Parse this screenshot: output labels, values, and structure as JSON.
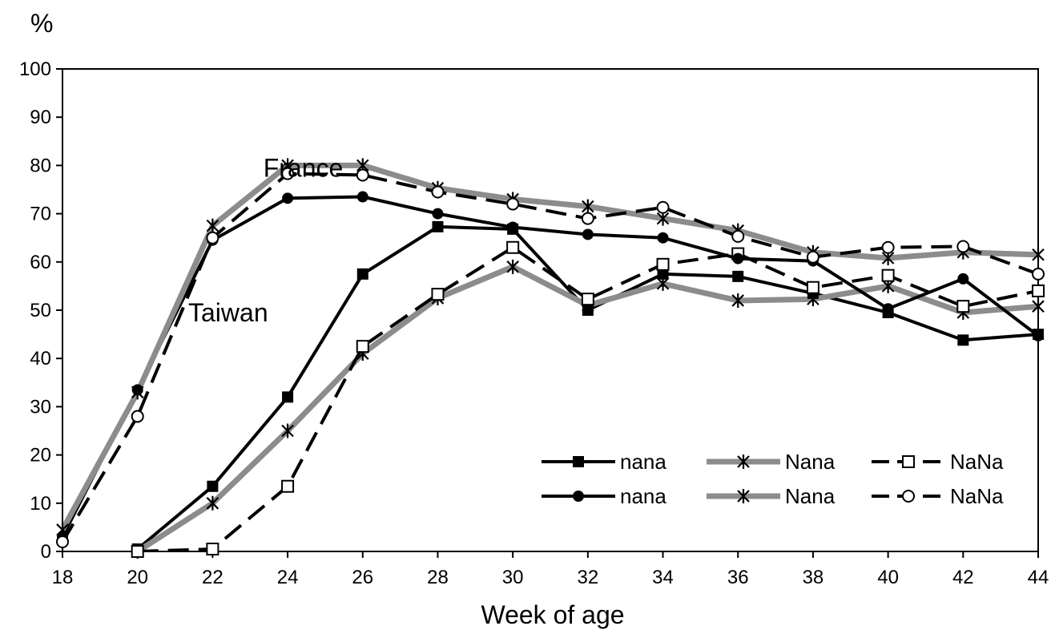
{
  "chart_data": {
    "type": "line",
    "xlabel": "Week of age",
    "ylabel": "%",
    "xlim": [
      18,
      44
    ],
    "ylim": [
      0,
      100
    ],
    "xticks": [
      18,
      20,
      22,
      24,
      26,
      28,
      30,
      32,
      34,
      36,
      38,
      40,
      42,
      44
    ],
    "yticks": [
      0,
      10,
      20,
      30,
      40,
      50,
      60,
      70,
      80,
      90,
      100
    ],
    "grid": false,
    "legend_position": "bottom-right",
    "group_labels": [
      {
        "text": "France",
        "x": 24.5,
        "y": 80
      },
      {
        "text": "Taiwan",
        "x": 22.5,
        "y": 50
      }
    ],
    "series": [
      {
        "name": "nana",
        "group": "Taiwan",
        "line_color": "#000000",
        "line_style": "solid",
        "marker": "filled-square",
        "x": [
          20,
          22,
          24,
          26,
          28,
          30,
          32,
          34,
          36,
          38,
          40,
          42,
          44
        ],
        "y": [
          0.5,
          13.5,
          32,
          57.5,
          67.3,
          66.8,
          50,
          57.5,
          57,
          53.5,
          49.5,
          43.8,
          45
        ]
      },
      {
        "name": "Nana",
        "group": "Taiwan",
        "line_color": "#8c8c8c",
        "line_style": "solid",
        "marker": "star",
        "x": [
          20,
          22,
          24,
          26,
          28,
          30,
          32,
          34,
          36,
          38,
          40,
          42,
          44
        ],
        "y": [
          0,
          10,
          25,
          41,
          52.5,
          59,
          51,
          55.5,
          52,
          52.3,
          55,
          49.5,
          50.8
        ]
      },
      {
        "name": "NaNa",
        "group": "Taiwan",
        "line_color": "#000000",
        "line_style": "dashed",
        "marker": "open-square",
        "x": [
          20,
          22,
          24,
          26,
          28,
          30,
          32,
          34,
          36,
          38,
          40,
          42,
          44
        ],
        "y": [
          0,
          0.5,
          13.5,
          42.5,
          53.3,
          63,
          52.3,
          59.5,
          61.7,
          54.7,
          57.2,
          50.8,
          54
        ]
      },
      {
        "name": "nana",
        "group": "France",
        "line_color": "#000000",
        "line_style": "solid",
        "marker": "filled-circle",
        "x": [
          18,
          20,
          22,
          24,
          26,
          28,
          30,
          32,
          34,
          36,
          38,
          40,
          42,
          44
        ],
        "y": [
          3,
          33.5,
          64.5,
          73.2,
          73.5,
          70,
          67.2,
          65.7,
          65,
          60.7,
          60.2,
          50.3,
          56.5,
          44.7
        ]
      },
      {
        "name": "Nana",
        "group": "France",
        "line_color": "#8c8c8c",
        "line_style": "solid",
        "marker": "star",
        "x": [
          18,
          20,
          22,
          24,
          26,
          28,
          30,
          32,
          34,
          36,
          38,
          40,
          42,
          44
        ],
        "y": [
          4.5,
          33,
          67.5,
          80,
          80,
          75.3,
          73,
          71.5,
          69,
          66.5,
          62,
          60.8,
          62,
          61.5
        ]
      },
      {
        "name": "NaNa",
        "group": "France",
        "line_color": "#000000",
        "line_style": "dashed",
        "marker": "open-circle",
        "x": [
          18,
          20,
          22,
          24,
          26,
          28,
          30,
          32,
          34,
          36,
          38,
          40,
          42,
          44
        ],
        "y": [
          2,
          28,
          65,
          78.3,
          78,
          74.5,
          72,
          69,
          71.3,
          65.3,
          61,
          63,
          63.2,
          57.5
        ]
      }
    ]
  }
}
